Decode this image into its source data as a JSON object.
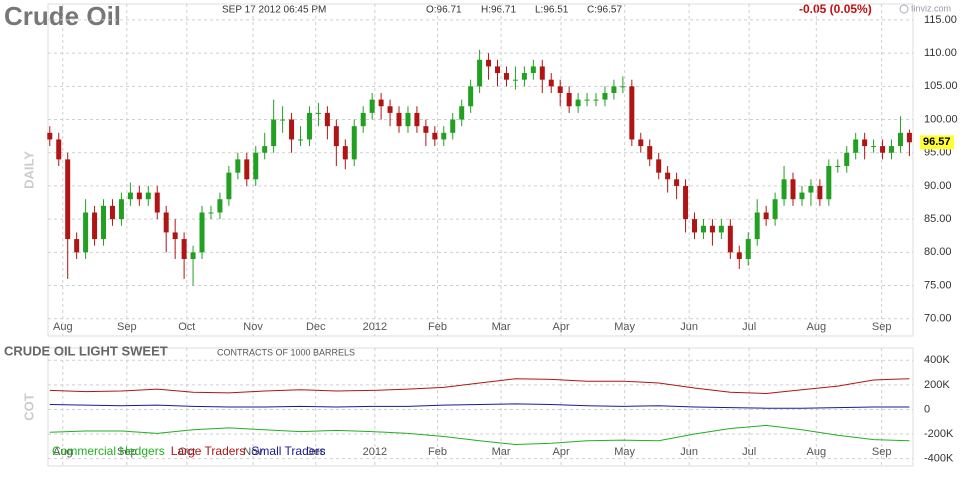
{
  "header": {
    "title": "Crude Oil",
    "date": "SEP 17 2012 06:45 PM",
    "open": "O:96.71",
    "high": "H:96.71",
    "low": "L:96.51",
    "close": "C:96.57",
    "change": "-0.05 (0.05%)",
    "brand": "finviz.com"
  },
  "chart_data": [
    {
      "type": "candlestick",
      "axis_label": "DAILY",
      "up_color": "#22a022",
      "down_color": "#b01515",
      "grid": true,
      "last_price": 96.57,
      "xlim": [
        -0.2,
        96.4
      ],
      "ylim": [
        67.4,
        117.4
      ],
      "xticks": [
        {
          "value": 1.45,
          "label": "Aug"
        },
        {
          "value": 8.6,
          "label": "Sep"
        },
        {
          "value": 15.3,
          "label": "Oct"
        },
        {
          "value": 22.7,
          "label": "Nov"
        },
        {
          "value": 29.7,
          "label": "Dec"
        },
        {
          "value": 36.3,
          "label": "2012"
        },
        {
          "value": 43.3,
          "label": "Feb"
        },
        {
          "value": 50.4,
          "label": "Mar"
        },
        {
          "value": 57.1,
          "label": "Apr"
        },
        {
          "value": 64.2,
          "label": "May"
        },
        {
          "value": 71.4,
          "label": "Jun"
        },
        {
          "value": 78.1,
          "label": "Jul"
        },
        {
          "value": 85.6,
          "label": "Aug"
        },
        {
          "value": 92.9,
          "label": "Sep"
        }
      ],
      "yticks": [
        {
          "value": 115,
          "label": "115.00"
        },
        {
          "value": 110,
          "label": "110.00"
        },
        {
          "value": 105,
          "label": "105.00"
        },
        {
          "value": 100,
          "label": "100.00"
        },
        {
          "value": 95,
          "label": "95.00"
        },
        {
          "value": 90,
          "label": "90.00"
        },
        {
          "value": 85,
          "label": "85.00"
        },
        {
          "value": 80,
          "label": "80.00"
        },
        {
          "value": 75,
          "label": "75.00"
        },
        {
          "value": 70,
          "label": "70.00"
        }
      ],
      "open": [
        98,
        97,
        94,
        82,
        80,
        86,
        82,
        87,
        85,
        88,
        89,
        88,
        89,
        86,
        83,
        82,
        79,
        80,
        86,
        86,
        88,
        92,
        94,
        91,
        95,
        96,
        100,
        100,
        97,
        97,
        101,
        101,
        99,
        96,
        94,
        99,
        101,
        103,
        102,
        101,
        99,
        101,
        99,
        98,
        97,
        98,
        100,
        102,
        105,
        109,
        108,
        107,
        106,
        106,
        107,
        108,
        106,
        105,
        104,
        102,
        103,
        103,
        103,
        104,
        105,
        105,
        97,
        96,
        94,
        92,
        91,
        90,
        85,
        83,
        84,
        83,
        84,
        80,
        79,
        82,
        86,
        85,
        88,
        91,
        88,
        89,
        90,
        88,
        93,
        93,
        95,
        97,
        96,
        96,
        95,
        96,
        98
      ],
      "high": [
        99,
        98,
        95,
        83,
        88,
        87,
        88,
        88,
        89,
        90.5,
        90,
        90,
        90,
        87,
        85,
        83,
        81,
        87,
        87,
        89,
        93,
        95,
        95,
        96,
        98,
        103,
        102,
        101,
        99,
        102,
        102.5,
        102,
        100,
        97,
        100,
        102,
        104,
        104,
        103,
        102,
        102,
        102,
        100,
        99,
        99,
        101,
        103,
        106,
        110.5,
        110,
        109,
        108,
        108,
        108,
        109,
        109,
        107,
        106,
        105,
        104,
        104,
        104,
        105,
        106,
        106.5,
        106,
        98,
        97,
        95,
        93,
        92,
        91,
        86,
        85,
        85,
        85,
        85,
        81,
        83,
        88,
        87,
        89,
        93,
        92,
        90,
        91,
        91,
        94,
        94,
        96,
        98,
        98,
        97,
        97,
        97,
        100.5,
        98.5
      ],
      "low": [
        96,
        93,
        76,
        79,
        79,
        81,
        81,
        84,
        84,
        87,
        87,
        87,
        85,
        80,
        79,
        76,
        75,
        79,
        85,
        85,
        87,
        91,
        90,
        90,
        94,
        95,
        98,
        95,
        96,
        96,
        99,
        97,
        93,
        92.5,
        93,
        98,
        100,
        100,
        99,
        98,
        98,
        98,
        96,
        96,
        96,
        97,
        99,
        101,
        104,
        106,
        105,
        105,
        104.5,
        105,
        106,
        104,
        104,
        102,
        101,
        101,
        102,
        102,
        102,
        103,
        104,
        96,
        95,
        93,
        91,
        89,
        88,
        83,
        82,
        82,
        81,
        82,
        79,
        77.5,
        78,
        81,
        84,
        84,
        87,
        87,
        87,
        87,
        87,
        87,
        92,
        92,
        94,
        94,
        95,
        94,
        94,
        95,
        94.5
      ],
      "close": [
        97,
        94,
        82,
        80,
        86,
        82,
        87,
        85,
        88,
        89,
        88,
        89,
        86,
        83,
        82,
        79,
        80,
        86,
        86,
        88,
        92,
        94,
        91,
        95,
        96,
        100,
        100,
        97,
        97,
        101,
        101,
        99,
        96,
        94,
        99,
        101,
        103,
        102,
        101,
        99,
        101,
        99,
        98,
        97,
        98,
        100,
        102,
        105,
        109,
        108,
        107,
        106,
        106,
        107,
        108,
        106,
        105,
        104,
        102,
        103,
        103,
        103,
        104,
        105,
        105,
        97,
        96,
        94,
        92,
        91,
        90,
        85,
        83,
        84,
        83,
        84,
        80,
        79,
        82,
        86,
        85,
        88,
        91,
        88,
        89,
        90,
        88,
        93,
        93,
        95,
        97,
        96,
        96,
        95,
        96,
        98,
        96.57
      ]
    },
    {
      "type": "line",
      "title": "CRUDE OIL LIGHT SWEET",
      "subtitle": "CONTRACTS OF 1000 BARRELS",
      "axis_label": "COT",
      "grid": true,
      "legend": "bottom-left",
      "xlim": [
        -0.2,
        96.4
      ],
      "ylim": [
        -460000,
        500000
      ],
      "xticks": [
        {
          "value": 1.45,
          "label": "Aug"
        },
        {
          "value": 8.6,
          "label": "Sep"
        },
        {
          "value": 15.3,
          "label": "Oct"
        },
        {
          "value": 22.7,
          "label": "Nov"
        },
        {
          "value": 29.7,
          "label": "Dec"
        },
        {
          "value": 36.3,
          "label": "2012"
        },
        {
          "value": 43.3,
          "label": "Feb"
        },
        {
          "value": 50.4,
          "label": "Mar"
        },
        {
          "value": 57.1,
          "label": "Apr"
        },
        {
          "value": 64.2,
          "label": "May"
        },
        {
          "value": 71.4,
          "label": "Jun"
        },
        {
          "value": 78.1,
          "label": "Jul"
        },
        {
          "value": 85.6,
          "label": "Aug"
        },
        {
          "value": 92.9,
          "label": "Sep"
        }
      ],
      "yticks": [
        {
          "value": 400000,
          "label": "400K"
        },
        {
          "value": 200000,
          "label": "200K"
        },
        0,
        {
          "value": -200000,
          "label": "-200K"
        },
        {
          "value": -400000,
          "label": "-400K"
        }
      ],
      "x": [
        0,
        4,
        8,
        12,
        16,
        20,
        24,
        28,
        32,
        36,
        40,
        44,
        48,
        52,
        56,
        60,
        64,
        68,
        72,
        76,
        80,
        84,
        88,
        92,
        96
      ],
      "series": [
        {
          "name": "Commercial Hedgers",
          "color": "#22b022",
          "values": [
            -185000,
            -175000,
            -175000,
            -195000,
            -165000,
            -150000,
            -165000,
            -180000,
            -170000,
            -180000,
            -195000,
            -220000,
            -255000,
            -285000,
            -275000,
            -255000,
            -250000,
            -255000,
            -200000,
            -155000,
            -130000,
            -165000,
            -210000,
            -245000,
            -255000
          ]
        },
        {
          "name": "Large Traders",
          "color": "#b01515",
          "values": [
            155000,
            145000,
            150000,
            165000,
            140000,
            135000,
            150000,
            160000,
            150000,
            155000,
            165000,
            180000,
            215000,
            250000,
            245000,
            230000,
            230000,
            215000,
            175000,
            140000,
            130000,
            160000,
            190000,
            240000,
            250000
          ]
        },
        {
          "name": "Small Traders",
          "color": "#1a1a9a",
          "values": [
            40000,
            35000,
            30000,
            35000,
            25000,
            20000,
            20000,
            25000,
            20000,
            25000,
            25000,
            35000,
            40000,
            45000,
            40000,
            30000,
            25000,
            30000,
            20000,
            15000,
            10000,
            10000,
            15000,
            20000,
            20000
          ]
        }
      ]
    }
  ]
}
